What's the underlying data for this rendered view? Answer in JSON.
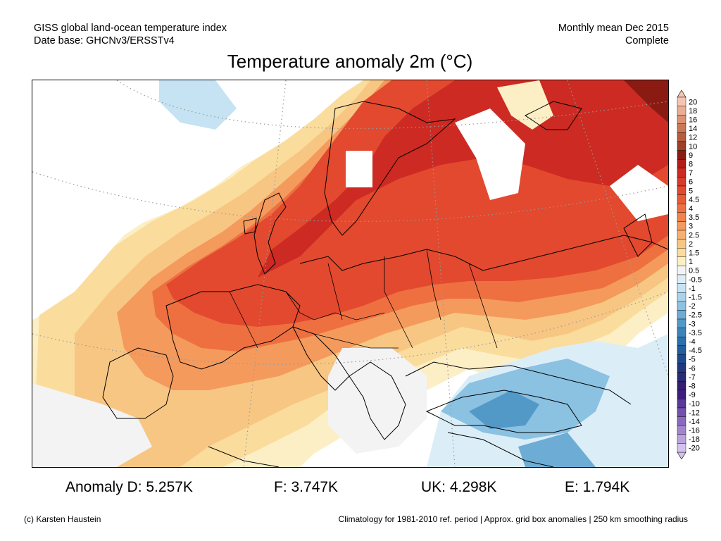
{
  "header": {
    "left_line1": "GISS global land-ocean temperature index",
    "left_line2": "Date base: GHCNv3/ERSSTv4",
    "right_line1": "Monthly mean Dec 2015",
    "right_line2": "Complete"
  },
  "map": {
    "title": "Temperature anomaly 2m (°C)"
  },
  "legend": {
    "labels": [
      "20",
      "18",
      "16",
      "14",
      "12",
      "10",
      "9",
      "8",
      "7",
      "6",
      "5",
      "4.5",
      "4",
      "3.5",
      "3",
      "2.5",
      "2",
      "1.5",
      "1",
      "0.5",
      "-0.5",
      "-1",
      "-1.5",
      "-2",
      "-2.5",
      "-3",
      "-3.5",
      "-4",
      "-4.5",
      "-5",
      "-6",
      "-7",
      "-8",
      "-9",
      "-10",
      "-12",
      "-14",
      "-16",
      "-18",
      "-20"
    ],
    "colors": [
      "#f4c6b2",
      "#ebad93",
      "#dd9272",
      "#cb7755",
      "#b65d3e",
      "#9c4028",
      "#8a1b13",
      "#b21d19",
      "#cc2a22",
      "#d73b29",
      "#e2492e",
      "#e85b34",
      "#ee7040",
      "#f1844d",
      "#f49a5c",
      "#f6b06f",
      "#f8c683",
      "#fadc9d",
      "#fcefc6",
      "#f3f3f3",
      "#dbeef8",
      "#c5e3f2",
      "#a9d3eb",
      "#8bc1e1",
      "#6dadd5",
      "#5399c8",
      "#3b84ba",
      "#2b6fac",
      "#225d9d",
      "#1b4a8e",
      "#21387f",
      "#2a2b76",
      "#341e6f",
      "#3f1d7f",
      "#5a3a98",
      "#7451ad",
      "#8b69c0",
      "#a385cf",
      "#bba2dd",
      "#d3c2ee"
    ]
  },
  "stats": {
    "germany": "Anomaly D: 5.257K",
    "france": "F: 3.747K",
    "uk": "UK: 4.298K",
    "spain": "E: 1.794K"
  },
  "footer": {
    "left": "(c) Karsten Haustein",
    "right": "Climatology for 1981-2010 ref. period | Approx. grid box anomalies | 250 km smoothing radius"
  }
}
